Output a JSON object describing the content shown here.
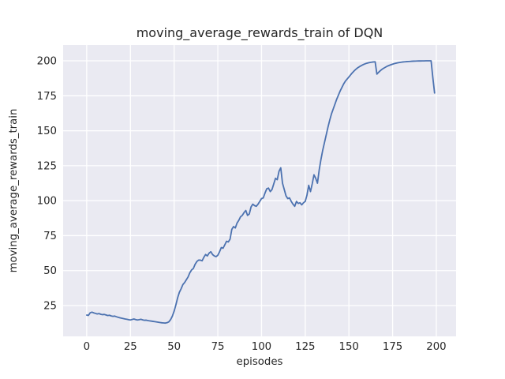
{
  "figure": {
    "title": "moving_average_rewards_train of DQN",
    "xlabel": "episodes",
    "ylabel": "moving_average_rewards_train"
  },
  "chart_data": {
    "type": "line",
    "title": "moving_average_rewards_train of DQN",
    "xlabel": "episodes",
    "ylabel": "moving_average_rewards_train",
    "x_ticks": [
      0,
      25,
      50,
      75,
      100,
      125,
      150,
      175,
      200
    ],
    "y_ticks": [
      25,
      50,
      75,
      100,
      125,
      150,
      175,
      200
    ],
    "xlim": [
      -13.5,
      211.3
    ],
    "ylim": [
      3.0,
      211.3
    ],
    "grid": true,
    "legend": "none",
    "panel_background": "#eaeaf2",
    "grid_color": "#ffffff",
    "line_color": "#4c72b0",
    "text_color": "#262626",
    "series": [
      {
        "name": "moving_average_rewards_train",
        "x_start": 0,
        "x_step": 1,
        "y": [
          18.2,
          18.0,
          19.9,
          20.3,
          19.8,
          19.4,
          19.0,
          19.3,
          18.8,
          18.5,
          18.7,
          18.3,
          17.9,
          18.1,
          17.6,
          17.3,
          17.5,
          17.0,
          16.6,
          16.3,
          16.0,
          15.7,
          15.4,
          15.2,
          14.9,
          14.7,
          15.1,
          15.4,
          15.0,
          14.7,
          14.9,
          15.2,
          14.8,
          14.5,
          14.6,
          14.3,
          14.1,
          13.9,
          13.7,
          13.5,
          13.3,
          13.1,
          12.9,
          12.7,
          12.6,
          12.5,
          12.8,
          13.4,
          15.0,
          17.5,
          21.0,
          25.5,
          30.5,
          34.5,
          37.0,
          40.0,
          41.5,
          43.5,
          45.5,
          48.5,
          50.5,
          51.5,
          54.5,
          56.5,
          57.5,
          57.5,
          57.0,
          59.5,
          61.5,
          60.5,
          62.5,
          63.5,
          61.5,
          60.5,
          60.0,
          61.0,
          63.5,
          66.5,
          66.0,
          68.5,
          71.0,
          70.5,
          72.5,
          79.5,
          81.5,
          80.5,
          84.0,
          86.0,
          88.5,
          89.5,
          91.5,
          93.0,
          89.5,
          90.5,
          95.5,
          97.5,
          96.5,
          96.0,
          97.5,
          99.5,
          101.5,
          102.0,
          105.5,
          108.5,
          109.0,
          106.5,
          108.0,
          112.0,
          116.0,
          115.0,
          121.0,
          123.5,
          112.5,
          108.0,
          103.5,
          101.5,
          102.0,
          99.5,
          97.5,
          96.0,
          99.5,
          98.0,
          98.5,
          97.0,
          98.5,
          99.5,
          104.0,
          111.0,
          106.5,
          112.0,
          118.5,
          116.0,
          112.5,
          122.0,
          129.5,
          136.0,
          141.5,
          147.0,
          152.5,
          157.5,
          162.0,
          165.5,
          169.0,
          172.5,
          175.5,
          178.5,
          181.0,
          183.5,
          185.5,
          187.0,
          188.5,
          190.0,
          191.5,
          192.8,
          194.0,
          195.0,
          195.8,
          196.5,
          197.2,
          197.7,
          198.2,
          198.5,
          198.8,
          199.0,
          199.2,
          199.3,
          190.5,
          191.8,
          193.0,
          194.0,
          194.8,
          195.5,
          196.2,
          196.7,
          197.2,
          197.6,
          198.0,
          198.3,
          198.6,
          198.8,
          199.0,
          199.2,
          199.3,
          199.4,
          199.5,
          199.6,
          199.7,
          199.75,
          199.8,
          199.85,
          199.9,
          199.9,
          199.95,
          199.95,
          200.0,
          200.0,
          200.0,
          200.0,
          188.0,
          177.0
        ]
      }
    ]
  }
}
